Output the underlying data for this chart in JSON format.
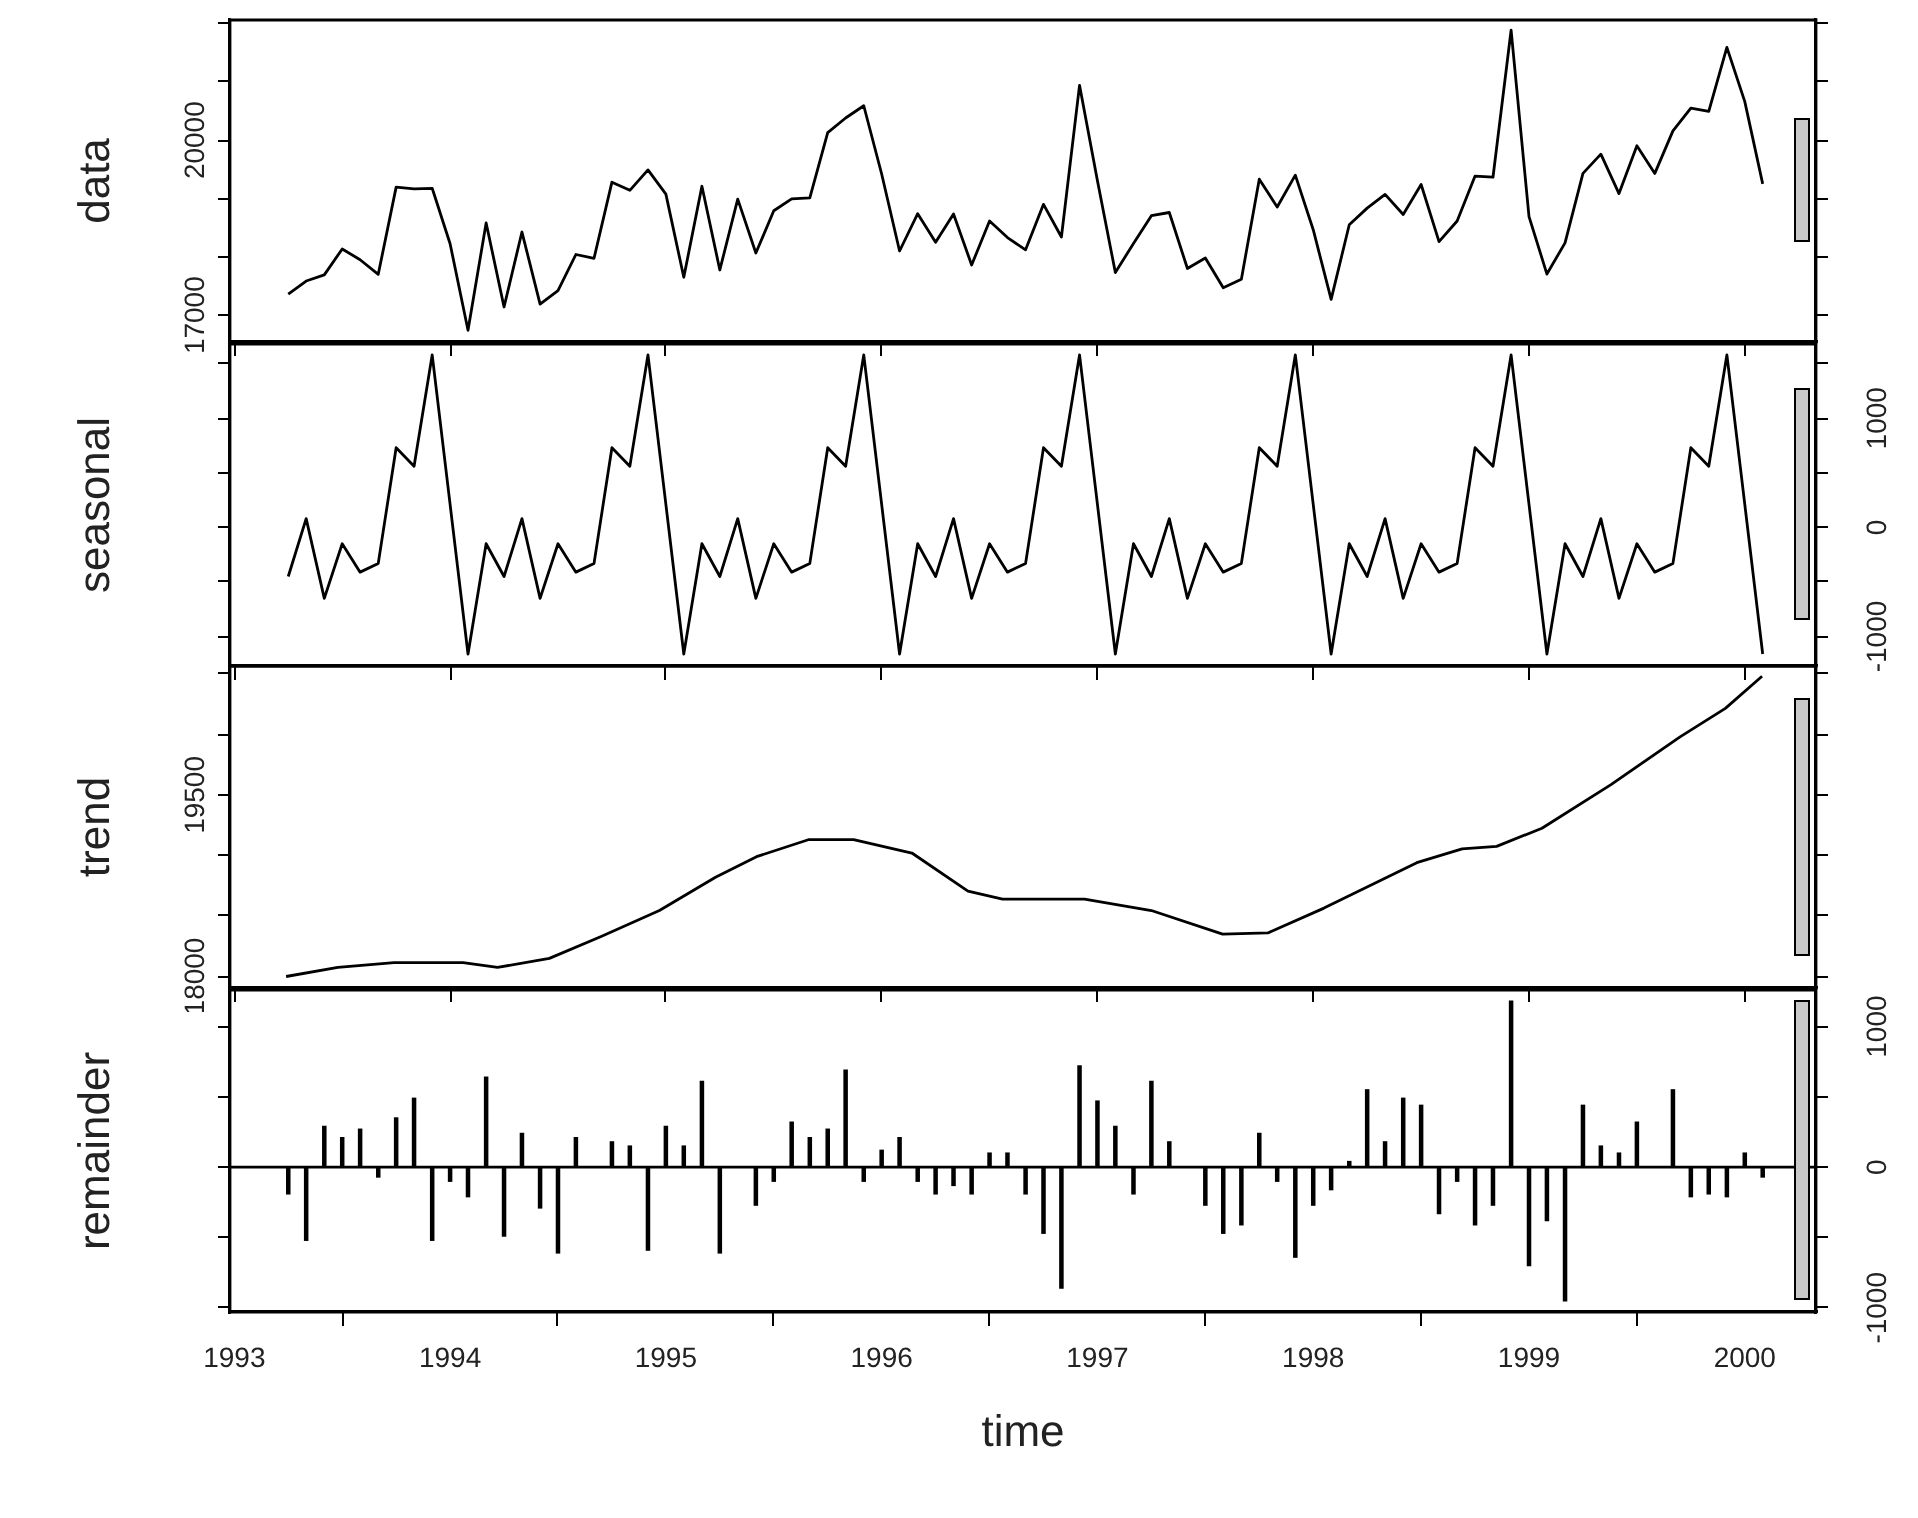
{
  "chart_data": [
    {
      "type": "line",
      "ylabel": "data",
      "color": "#000000",
      "xlim": [
        1992.98,
        2000.33
      ],
      "xticks": [
        1993,
        1994,
        1995,
        1996,
        1997,
        1998,
        1999,
        2000
      ],
      "ylim": [
        16540,
        22060
      ],
      "yticks": [
        17000,
        {
          "value": 18000,
          "label": null
        },
        {
          "value": 19000,
          "label": null
        },
        20000,
        {
          "value": 21000,
          "label": null
        },
        {
          "value": 22000,
          "label": null
        }
      ],
      "tick_labels": "y",
      "x": [
        1993.25,
        1993.333,
        1993.417,
        1993.5,
        1993.583,
        1993.667,
        1993.75,
        1993.833,
        1993.917,
        1994,
        1994.083,
        1994.167,
        1994.25,
        1994.333,
        1994.417,
        1994.5,
        1994.583,
        1994.667,
        1994.75,
        1994.833,
        1994.917,
        1995,
        1995.083,
        1995.167,
        1995.25,
        1995.333,
        1995.417,
        1995.5,
        1995.583,
        1995.667,
        1995.75,
        1995.833,
        1995.917,
        1996,
        1996.083,
        1996.167,
        1996.25,
        1996.333,
        1996.417,
        1996.5,
        1996.583,
        1996.667,
        1996.75,
        1996.833,
        1996.917,
        1997,
        1997.083,
        1997.167,
        1997.25,
        1997.333,
        1997.417,
        1997.5,
        1997.583,
        1997.667,
        1997.75,
        1997.833,
        1997.917,
        1998,
        1998.083,
        1998.167,
        1998.25,
        1998.333,
        1998.417,
        1998.5,
        1998.583,
        1998.667,
        1998.75,
        1998.833,
        1998.917,
        1999,
        1999.083,
        1999.167,
        1999.25,
        1999.333,
        1999.417,
        1999.5,
        1999.583,
        1999.667,
        1999.75,
        1999.833,
        1999.917,
        2000,
        2000.083
      ],
      "values": [
        17360,
        17585,
        17690,
        18135,
        17950,
        17700,
        19195,
        19165,
        19175,
        18225,
        16740,
        18580,
        17140,
        18425,
        17190,
        17420,
        18040,
        17975,
        19280,
        19140,
        19490,
        19075,
        17650,
        19210,
        17775,
        18990,
        18065,
        18790,
        18995,
        19010,
        20130,
        20380,
        20590,
        19420,
        18100,
        18740,
        18250,
        18735,
        17860,
        18615,
        18330,
        18120,
        18900,
        18340,
        20940,
        19305,
        17730,
        18230,
        18705,
        18760,
        17800,
        17980,
        17470,
        17615,
        19330,
        18855,
        19400,
        18465,
        17270,
        18550,
        18835,
        19070,
        18725,
        19240,
        18260,
        18615,
        19385,
        19365,
        21885,
        18690,
        17705,
        18240,
        19430,
        19760,
        19085,
        19905,
        19430,
        20160,
        20550,
        20495,
        21590,
        20660,
        19250
      ]
    },
    {
      "type": "line",
      "ylabel": "seasonal",
      "color": "#000000",
      "xlim": [
        1992.98,
        2000.33
      ],
      "xticks": [
        1993,
        1994,
        1995,
        1996,
        1997,
        1998,
        1999,
        2000
      ],
      "ylim": [
        -1270,
        1680
      ],
      "yticks": [
        {
          "value": 1500,
          "label": null
        },
        1000,
        {
          "value": 500,
          "label": null
        },
        0,
        {
          "value": -500,
          "label": null
        },
        -1000
      ],
      "tick_labels": "y",
      "x": [
        1993.25,
        1993.333,
        1993.417,
        1993.5,
        1993.583,
        1993.667,
        1993.75,
        1993.833,
        1993.917,
        1994,
        1994.083,
        1994.167,
        1994.25,
        1994.333,
        1994.417,
        1994.5,
        1994.583,
        1994.667,
        1994.75,
        1994.833,
        1994.917,
        1995,
        1995.083,
        1995.167,
        1995.25,
        1995.333,
        1995.417,
        1995.5,
        1995.583,
        1995.667,
        1995.75,
        1995.833,
        1995.917,
        1996,
        1996.083,
        1996.167,
        1996.25,
        1996.333,
        1996.417,
        1996.5,
        1996.583,
        1996.667,
        1996.75,
        1996.833,
        1996.917,
        1997,
        1997.083,
        1997.167,
        1997.25,
        1997.333,
        1997.417,
        1997.5,
        1997.583,
        1997.667,
        1997.75,
        1997.833,
        1997.917,
        1998,
        1998.083,
        1998.167,
        1998.25,
        1998.333,
        1998.417,
        1998.5,
        1998.583,
        1998.667,
        1998.75,
        1998.833,
        1998.917,
        1999,
        1999.083,
        1999.167,
        1999.25,
        1999.333,
        1999.417,
        1999.5,
        1999.583,
        1999.667,
        1999.75,
        1999.833,
        1999.917,
        2000,
        2000.083
      ],
      "values": [
        -450,
        80,
        -650,
        -150,
        -410,
        -330,
        730,
        560,
        1580,
        210,
        -1160,
        -150,
        -450,
        80,
        -650,
        -150,
        -410,
        -330,
        730,
        560,
        1580,
        210,
        -1160,
        -150,
        -450,
        80,
        -650,
        -150,
        -410,
        -330,
        730,
        560,
        1580,
        210,
        -1160,
        -150,
        -450,
        80,
        -650,
        -150,
        -410,
        -330,
        730,
        560,
        1580,
        210,
        -1160,
        -150,
        -450,
        80,
        -650,
        -150,
        -410,
        -330,
        730,
        560,
        1580,
        210,
        -1160,
        -150,
        -450,
        80,
        -650,
        -150,
        -410,
        -330,
        730,
        560,
        1580,
        210,
        -1160,
        -150,
        -450,
        80,
        -650,
        -150,
        -410,
        -330,
        730,
        560,
        1580,
        210,
        -1160
      ]
    },
    {
      "type": "line",
      "ylabel": "trend",
      "color": "#000000",
      "xlim": [
        1992.98,
        2000.33
      ],
      "xticks": [
        1993,
        1994,
        1995,
        1996,
        1997,
        1998,
        1999,
        2000
      ],
      "ylim": [
        17905,
        20565
      ],
      "yticks": [
        18000,
        {
          "value": 18500,
          "label": null
        },
        {
          "value": 19000,
          "label": null
        },
        19500,
        {
          "value": 20000,
          "label": null
        },
        {
          "value": 20500,
          "label": null
        }
      ],
      "tick_labels": "y",
      "x": [
        1993.24,
        1993.48,
        1993.74,
        1994.06,
        1994.22,
        1994.46,
        1994.7,
        1994.97,
        1995.23,
        1995.42,
        1995.66,
        1995.87,
        1996.14,
        1996.4,
        1996.56,
        1996.94,
        1997.25,
        1997.58,
        1997.79,
        1998.05,
        1998.48,
        1998.69,
        1998.85,
        1999.06,
        1999.38,
        1999.7,
        1999.91,
        2000.08
      ],
      "values": [
        18000,
        18075,
        18115,
        18115,
        18075,
        18150,
        18330,
        18545,
        18820,
        18990,
        19130,
        19130,
        19020,
        18705,
        18640,
        18640,
        18545,
        18350,
        18360,
        18565,
        18940,
        19055,
        19075,
        19225,
        19585,
        19980,
        20215,
        20480
      ]
    },
    {
      "type": "bar",
      "ylabel": "remainder",
      "xlabel": "time",
      "color": "#000000",
      "xlim": [
        1992.98,
        2000.33
      ],
      "xticks": [
        1993,
        1994,
        1995,
        1996,
        1997,
        1998,
        1999,
        2000
      ],
      "ylim": [
        -1030,
        1260
      ],
      "yticks": [
        1000,
        {
          "value": 500,
          "label": null
        },
        0,
        {
          "value": -500,
          "label": null
        },
        -1000
      ],
      "ref_lines": [
        {
          "axis": "y",
          "value": 0
        }
      ],
      "x": [
        1993.25,
        1993.333,
        1993.417,
        1993.5,
        1993.583,
        1993.667,
        1993.75,
        1993.833,
        1993.917,
        1994,
        1994.083,
        1994.167,
        1994.25,
        1994.333,
        1994.417,
        1994.5,
        1994.583,
        1994.667,
        1994.75,
        1994.833,
        1994.917,
        1995,
        1995.083,
        1995.167,
        1995.25,
        1995.333,
        1995.417,
        1995.5,
        1995.583,
        1995.667,
        1995.75,
        1995.833,
        1995.917,
        1996,
        1996.083,
        1996.167,
        1996.25,
        1996.333,
        1996.417,
        1996.5,
        1996.583,
        1996.667,
        1996.75,
        1996.833,
        1996.917,
        1997,
        1997.083,
        1997.167,
        1997.25,
        1997.333,
        1997.417,
        1997.5,
        1997.583,
        1997.667,
        1997.75,
        1997.833,
        1997.917,
        1998,
        1998.083,
        1998.167,
        1998.25,
        1998.333,
        1998.417,
        1998.5,
        1998.583,
        1998.667,
        1998.75,
        1998.833,
        1998.917,
        1999,
        1999.083,
        1999.167,
        1999.25,
        1999.333,
        1999.417,
        1999.5,
        1999.583,
        1999.667,
        1999.75,
        1999.833,
        1999.917,
        2000,
        2000.083
      ],
      "values": [
        -190,
        -520,
        290,
        210,
        270,
        -70,
        350,
        490,
        -520,
        -100,
        -210,
        640,
        -490,
        240,
        -290,
        -610,
        210,
        0,
        180,
        150,
        -590,
        290,
        150,
        610,
        -610,
        0,
        -270,
        -100,
        320,
        210,
        270,
        690,
        -100,
        120,
        210,
        -100,
        -190,
        -130,
        -190,
        100,
        100,
        -190,
        -470,
        -860,
        720,
        470,
        290,
        -190,
        610,
        180,
        0,
        -270,
        -470,
        -410,
        240,
        -100,
        -640,
        -270,
        -160,
        40,
        550,
        180,
        490,
        440,
        -330,
        -100,
        -410,
        -270,
        1180,
        -700,
        -380,
        -950,
        440,
        150,
        100,
        320,
        0,
        550,
        -210,
        -190,
        -210,
        100,
        -70
      ]
    }
  ]
}
